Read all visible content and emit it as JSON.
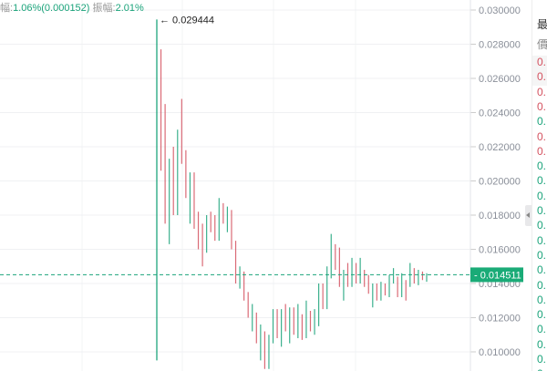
{
  "header": {
    "amplitude_label_partial": "幅:",
    "change": "1.06%(0.000152)",
    "range_label": "振幅:",
    "range_value": "2.01%"
  },
  "colors": {
    "up": "#1aa37a",
    "down": "#d4515f",
    "last_price_bg": "#1aab77"
  },
  "chart_data": {
    "type": "candlestick",
    "ylim": [
      0.009,
      0.0305
    ],
    "yticks": [
      "0.030000",
      "0.028000",
      "0.026000",
      "0.024000",
      "0.022000",
      "0.020000",
      "0.018000",
      "0.016000",
      "0.014000",
      "0.012000",
      "0.010000"
    ],
    "max_label": "0.029444",
    "last_price": "0.014511",
    "candles": [
      [
        0.01,
        0.029444,
        0.0095,
        0.027
      ],
      [
        0.0275,
        0.0277,
        0.0206,
        0.021
      ],
      [
        0.0245,
        0.0245,
        0.0175,
        0.019
      ],
      [
        0.0175,
        0.0213,
        0.0163,
        0.0205
      ],
      [
        0.022,
        0.022,
        0.018,
        0.0185
      ],
      [
        0.018,
        0.023,
        0.018,
        0.0225
      ],
      [
        0.0246,
        0.0248,
        0.021,
        0.0215
      ],
      [
        0.021,
        0.0218,
        0.019,
        0.0193
      ],
      [
        0.018,
        0.0205,
        0.0175,
        0.02
      ],
      [
        0.0205,
        0.0205,
        0.0172,
        0.0175
      ],
      [
        0.018,
        0.0182,
        0.016,
        0.0165
      ],
      [
        0.0175,
        0.0175,
        0.015,
        0.0155
      ],
      [
        0.0162,
        0.018,
        0.0158,
        0.0175
      ],
      [
        0.0182,
        0.0182,
        0.017,
        0.0172
      ],
      [
        0.018,
        0.018,
        0.0165,
        0.0168
      ],
      [
        0.0168,
        0.019,
        0.0165,
        0.0185
      ],
      [
        0.0187,
        0.0187,
        0.0175,
        0.0178
      ],
      [
        0.0176,
        0.0185,
        0.017,
        0.0182
      ],
      [
        0.0183,
        0.0183,
        0.016,
        0.0163
      ],
      [
        0.0163,
        0.0165,
        0.014,
        0.0145
      ],
      [
        0.0142,
        0.015,
        0.0137,
        0.0148
      ],
      [
        0.0147,
        0.0147,
        0.013,
        0.0132
      ],
      [
        0.0135,
        0.0135,
        0.012,
        0.0122
      ],
      [
        0.0118,
        0.0128,
        0.0112,
        0.0125
      ],
      [
        0.0123,
        0.0123,
        0.0105,
        0.0108
      ],
      [
        0.01,
        0.0116,
        0.0095,
        0.0114
      ],
      [
        0.011,
        0.0112,
        0.009,
        0.0092
      ],
      [
        0.0093,
        0.011,
        0.009,
        0.0108
      ],
      [
        0.0105,
        0.0125,
        0.0105,
        0.0122
      ],
      [
        0.0125,
        0.0125,
        0.0108,
        0.011
      ],
      [
        0.0105,
        0.0125,
        0.0103,
        0.012
      ],
      [
        0.0128,
        0.0128,
        0.0112,
        0.0115
      ],
      [
        0.0108,
        0.0126,
        0.0105,
        0.0123
      ],
      [
        0.0125,
        0.0126,
        0.011,
        0.0112
      ],
      [
        0.011,
        0.0128,
        0.0108,
        0.0125
      ],
      [
        0.0121,
        0.0122,
        0.0107,
        0.0109
      ],
      [
        0.0109,
        0.013,
        0.0108,
        0.0127
      ],
      [
        0.0124,
        0.0124,
        0.0112,
        0.0114
      ],
      [
        0.0112,
        0.0125,
        0.011,
        0.0122
      ],
      [
        0.0117,
        0.014,
        0.0115,
        0.0138
      ],
      [
        0.014,
        0.014,
        0.0125,
        0.0128
      ],
      [
        0.0128,
        0.015,
        0.0125,
        0.0147
      ],
      [
        0.0143,
        0.0169,
        0.0143,
        0.0165
      ],
      [
        0.0163,
        0.0163,
        0.0148,
        0.015
      ],
      [
        0.016,
        0.0161,
        0.0138,
        0.0142
      ],
      [
        0.0138,
        0.0148,
        0.013,
        0.0145
      ],
      [
        0.0152,
        0.0152,
        0.0138,
        0.014
      ],
      [
        0.014,
        0.0155,
        0.0138,
        0.0153
      ],
      [
        0.015,
        0.0152,
        0.014,
        0.0143
      ],
      [
        0.0143,
        0.0155,
        0.014,
        0.015
      ],
      [
        0.0148,
        0.0148,
        0.0138,
        0.014
      ],
      [
        0.0145,
        0.0145,
        0.0134,
        0.0136
      ],
      [
        0.0134,
        0.014,
        0.0126,
        0.0138
      ],
      [
        0.014,
        0.014,
        0.013,
        0.0132
      ],
      [
        0.0132,
        0.0141,
        0.013,
        0.0139
      ],
      [
        0.014,
        0.014,
        0.0133,
        0.0135
      ],
      [
        0.0133,
        0.0145,
        0.0132,
        0.0143
      ],
      [
        0.0141,
        0.0149,
        0.014,
        0.0146
      ],
      [
        0.0144,
        0.0144,
        0.0132,
        0.0134
      ],
      [
        0.0134,
        0.0146,
        0.0132,
        0.0142
      ],
      [
        0.0142,
        0.0142,
        0.013,
        0.0133
      ],
      [
        0.0138,
        0.0152,
        0.0138,
        0.0146
      ],
      [
        0.0148,
        0.0149,
        0.014,
        0.0142
      ],
      [
        0.014,
        0.0148,
        0.0139,
        0.0146
      ],
      [
        0.0147,
        0.0147,
        0.0142,
        0.0143
      ],
      [
        0.0143,
        0.0146,
        0.0141,
        0.0145
      ]
    ]
  },
  "side_panel": {
    "header1": "最",
    "header2": "價",
    "rows": [
      {
        "text": "0.",
        "dir": "down"
      },
      {
        "text": "0.",
        "dir": "down"
      },
      {
        "text": "0.",
        "dir": "down"
      },
      {
        "text": "0.",
        "dir": "down"
      },
      {
        "text": "0.",
        "dir": "up"
      },
      {
        "text": "0.",
        "dir": "down"
      },
      {
        "text": "0.",
        "dir": "down"
      },
      {
        "text": "0.",
        "dir": "up"
      },
      {
        "text": "0.",
        "dir": "up"
      },
      {
        "text": "0.",
        "dir": "up"
      },
      {
        "text": "0.",
        "dir": "up"
      },
      {
        "text": "0.",
        "dir": "up"
      },
      {
        "text": "0.",
        "dir": "up"
      },
      {
        "text": "0.",
        "dir": "up"
      },
      {
        "text": "0.",
        "dir": "up"
      },
      {
        "text": "0.",
        "dir": "up"
      },
      {
        "text": "0.",
        "dir": "up"
      },
      {
        "text": "0.",
        "dir": "up"
      },
      {
        "text": "0.",
        "dir": "up"
      },
      {
        "text": "0.",
        "dir": "up"
      },
      {
        "text": "0.",
        "dir": "up"
      },
      {
        "text": "0.",
        "dir": "up"
      }
    ]
  }
}
